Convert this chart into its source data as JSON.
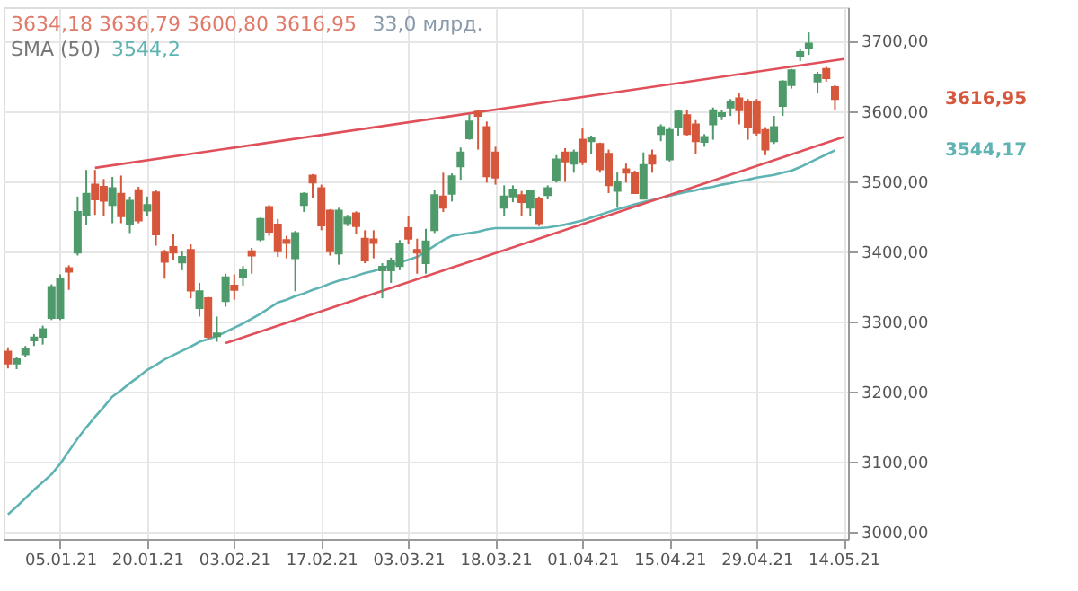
{
  "chart_data": {
    "type": "candlestick",
    "categories": [
      null,
      null,
      null,
      null,
      null,
      null,
      "05.01.21",
      null,
      null,
      null,
      null,
      null,
      null,
      null,
      null,
      null,
      "20.01.21",
      null,
      null,
      null,
      null,
      null,
      null,
      null,
      null,
      null,
      "03.02.21",
      null,
      null,
      null,
      null,
      null,
      null,
      null,
      null,
      null,
      "17.02.21",
      null,
      null,
      null,
      null,
      null,
      null,
      null,
      null,
      null,
      "03.03.21",
      null,
      null,
      null,
      null,
      null,
      null,
      null,
      null,
      null,
      "18.03.21",
      null,
      null,
      null,
      null,
      null,
      null,
      null,
      null,
      null,
      "01.04.21",
      null,
      null,
      null,
      null,
      null,
      null,
      null,
      null,
      null,
      "15.04.21",
      null,
      null,
      null,
      null,
      null,
      null,
      null,
      null,
      null,
      "29.04.21",
      null,
      null,
      null,
      null,
      null,
      null,
      null,
      null,
      null,
      "14.05.21"
    ],
    "ohlc": [
      [
        3257,
        3263,
        3233,
        3240
      ],
      [
        3240,
        3249,
        3232,
        3246
      ],
      [
        3253,
        3265,
        3249,
        3261
      ],
      [
        3273,
        3282,
        3265,
        3277
      ],
      [
        3278,
        3294,
        3267,
        3289
      ],
      [
        3305,
        3353,
        3302,
        3349
      ],
      [
        3305,
        3367,
        3302,
        3360
      ],
      [
        3376,
        3380,
        3345,
        3371
      ],
      [
        3398,
        3478,
        3394,
        3456
      ],
      [
        3452,
        3516,
        3438,
        3482
      ],
      [
        3495,
        3516,
        3452,
        3474
      ],
      [
        3492,
        3503,
        3450,
        3472
      ],
      [
        3466,
        3506,
        3440,
        3490
      ],
      [
        3482,
        3508,
        3440,
        3450
      ],
      [
        3438,
        3478,
        3426,
        3472
      ],
      [
        3487,
        3492,
        3440,
        3444
      ],
      [
        3458,
        3478,
        3450,
        3466
      ],
      [
        3484,
        3488,
        3408,
        3424
      ],
      [
        3398,
        3402,
        3361,
        3385
      ],
      [
        3406,
        3425,
        3387,
        3398
      ],
      [
        3384,
        3400,
        3373,
        3392
      ],
      [
        3402,
        3410,
        3333,
        3344
      ],
      [
        3319,
        3355,
        3307,
        3343
      ],
      [
        3333,
        3335,
        3273,
        3278
      ],
      [
        3279,
        3307,
        3271,
        3283
      ],
      [
        3329,
        3368,
        3321,
        3363
      ],
      [
        3351,
        3367,
        3331,
        3345
      ],
      [
        3363,
        3379,
        3351,
        3373
      ],
      [
        3400,
        3405,
        3368,
        3394
      ],
      [
        3417,
        3448,
        3414,
        3446
      ],
      [
        3463,
        3466,
        3422,
        3428
      ],
      [
        3438,
        3446,
        3392,
        3400
      ],
      [
        3416,
        3422,
        3390,
        3412
      ],
      [
        3390,
        3429,
        3343,
        3426
      ],
      [
        3466,
        3484,
        3456,
        3482
      ],
      [
        3508,
        3510,
        3476,
        3498
      ],
      [
        3490,
        3495,
        3430,
        3437
      ],
      [
        3458,
        3460,
        3394,
        3400
      ],
      [
        3397,
        3462,
        3381,
        3458
      ],
      [
        3440,
        3452,
        3436,
        3448
      ],
      [
        3454,
        3457,
        3424,
        3436
      ],
      [
        3418,
        3430,
        3383,
        3387
      ],
      [
        3417,
        3430,
        3390,
        3412
      ],
      [
        3373,
        3383,
        3333,
        3378
      ],
      [
        3373,
        3391,
        3355,
        3387
      ],
      [
        3379,
        3416,
        3373,
        3410
      ],
      [
        3433,
        3450,
        3410,
        3418
      ],
      [
        3402,
        3418,
        3368,
        3398
      ],
      [
        3383,
        3432,
        3368,
        3414
      ],
      [
        3430,
        3488,
        3426,
        3480
      ],
      [
        3478,
        3512,
        3456,
        3462
      ],
      [
        3482,
        3511,
        3471,
        3507
      ],
      [
        3521,
        3548,
        3502,
        3541
      ],
      [
        3561,
        3595,
        3559,
        3585
      ],
      [
        3599,
        3601,
        3545,
        3593
      ],
      [
        3577,
        3585,
        3498,
        3507
      ],
      [
        3541,
        3549,
        3495,
        3505
      ],
      [
        3462,
        3494,
        3450,
        3478
      ],
      [
        3478,
        3494,
        3470,
        3488
      ],
      [
        3480,
        3486,
        3450,
        3470
      ],
      [
        3462,
        3488,
        3450,
        3486
      ],
      [
        3475,
        3478,
        3436,
        3440
      ],
      [
        3480,
        3494,
        3474,
        3490
      ],
      [
        3502,
        3537,
        3498,
        3531
      ],
      [
        3541,
        3547,
        3499,
        3528
      ],
      [
        3525,
        3545,
        3512,
        3541
      ],
      [
        3559,
        3575,
        3523,
        3528
      ],
      [
        3557,
        3565,
        3539,
        3561
      ],
      [
        3553,
        3555,
        3512,
        3517
      ],
      [
        3539,
        3545,
        3483,
        3494
      ],
      [
        3486,
        3513,
        3462,
        3499
      ],
      [
        3517,
        3525,
        3498,
        3512
      ],
      [
        3512,
        3515,
        3482,
        3483
      ],
      [
        3475,
        3541,
        3474,
        3523
      ],
      [
        3536,
        3545,
        3512,
        3525
      ],
      [
        3567,
        3581,
        3557,
        3577
      ],
      [
        3531,
        3577,
        3528,
        3573
      ],
      [
        3577,
        3602,
        3565,
        3599
      ],
      [
        3594,
        3602,
        3565,
        3567
      ],
      [
        3581,
        3587,
        3539,
        3557
      ],
      [
        3556,
        3567,
        3549,
        3563
      ],
      [
        3581,
        3605,
        3559,
        3601
      ],
      [
        3593,
        3601,
        3587,
        3597
      ],
      [
        3605,
        3617,
        3593,
        3613
      ],
      [
        3618,
        3625,
        3581,
        3601
      ],
      [
        3613,
        3617,
        3559,
        3577
      ],
      [
        3613,
        3617,
        3565,
        3569
      ],
      [
        3573,
        3577,
        3537,
        3545
      ],
      [
        3557,
        3593,
        3553,
        3577
      ],
      [
        3607,
        3644,
        3593,
        3642
      ],
      [
        3637,
        3660,
        3632,
        3658
      ],
      [
        3679,
        3688,
        3671,
        3684
      ],
      [
        3690,
        3712,
        3680,
        3696
      ],
      [
        3642,
        3656,
        3625,
        3652
      ],
      [
        3660,
        3663,
        3642,
        3647
      ],
      [
        3634.18,
        3636.79,
        3600.8,
        3616.95
      ],
      null
    ],
    "colors": [
      "#d6573b",
      "#4e9a6a",
      "#4e9a6a",
      "#4e9a6a",
      "#4e9a6a",
      "#4e9a6a",
      "#4e9a6a",
      "#d6573b",
      "#4e9a6a",
      "#4e9a6a",
      "#d6573b",
      "#d6573b",
      "#4e9a6a",
      "#d6573b",
      "#4e9a6a",
      "#d6573b",
      "#4e9a6a",
      "#d6573b",
      "#d6573b",
      "#d6573b",
      "#4e9a6a",
      "#d6573b",
      "#4e9a6a",
      "#d6573b",
      "#4e9a6a",
      "#4e9a6a",
      "#d6573b",
      "#4e9a6a",
      "#d6573b",
      "#4e9a6a",
      "#d6573b",
      "#d6573b",
      "#d6573b",
      "#4e9a6a",
      "#4e9a6a",
      "#d6573b",
      "#d6573b",
      "#d6573b",
      "#4e9a6a",
      "#4e9a6a",
      "#d6573b",
      "#d6573b",
      "#d6573b",
      "#4e9a6a",
      "#4e9a6a",
      "#4e9a6a",
      "#d6573b",
      "#d6573b",
      "#4e9a6a",
      "#4e9a6a",
      "#d6573b",
      "#4e9a6a",
      "#4e9a6a",
      "#4e9a6a",
      "#d6573b",
      "#d6573b",
      "#d6573b",
      "#4e9a6a",
      "#4e9a6a",
      "#d6573b",
      "#4e9a6a",
      "#d6573b",
      "#4e9a6a",
      "#4e9a6a",
      "#d6573b",
      "#4e9a6a",
      "#d6573b",
      "#4e9a6a",
      "#d6573b",
      "#d6573b",
      "#4e9a6a",
      "#d6573b",
      "#d6573b",
      "#4e9a6a",
      "#d6573b",
      "#4e9a6a",
      "#4e9a6a",
      "#4e9a6a",
      "#d6573b",
      "#d6573b",
      "#4e9a6a",
      "#4e9a6a",
      "#4e9a6a",
      "#4e9a6a",
      "#d6573b",
      "#d6573b",
      "#d6573b",
      "#d6573b",
      "#4e9a6a",
      "#4e9a6a",
      "#4e9a6a",
      "#4e9a6a",
      "#4e9a6a",
      "#4e9a6a",
      "#d6573b",
      "#d6573b",
      null
    ],
    "series": [
      {
        "name": "SMA (50)",
        "type": "line",
        "color": "#5fb3b3",
        "values": [
          3025,
          3036,
          3048,
          3060,
          3071,
          3082,
          3097,
          3115,
          3133,
          3149,
          3164,
          3178,
          3193,
          3202,
          3212,
          3221,
          3231,
          3238,
          3246,
          3252,
          3258,
          3264,
          3271,
          3275,
          3279,
          3285,
          3291,
          3297,
          3304,
          3311,
          3319,
          3327,
          3331,
          3336,
          3340,
          3345,
          3349,
          3354,
          3358,
          3361,
          3365,
          3369,
          3372,
          3376,
          3380,
          3384,
          3388,
          3392,
          3400,
          3408,
          3416,
          3422,
          3424,
          3426,
          3428,
          3431,
          3433,
          3433,
          3433,
          3433,
          3433,
          3433,
          3434,
          3436,
          3438,
          3441,
          3444,
          3448,
          3452,
          3456,
          3460,
          3463,
          3467,
          3470,
          3473,
          3476,
          3479,
          3482,
          3485,
          3487,
          3490,
          3492,
          3495,
          3497,
          3500,
          3502,
          3505,
          3507,
          3509,
          3512,
          3515,
          3520,
          3526,
          3532,
          3538,
          3544,
          null
        ]
      },
      {
        "type": "line",
        "color": "#e0505a",
        "values": [
          null,
          null,
          null,
          null,
          null,
          null,
          null,
          null,
          null,
          null,
          3519,
          null,
          null,
          null,
          null,
          null,
          null,
          null,
          null,
          null,
          null,
          null,
          null,
          null,
          null,
          null,
          null,
          null,
          null,
          null,
          null,
          null,
          null,
          null,
          null,
          null,
          null,
          null,
          null,
          null,
          null,
          null,
          null,
          null,
          null,
          null,
          null,
          null,
          null,
          null,
          null,
          null,
          null,
          null,
          null,
          null,
          null,
          null,
          null,
          null,
          null,
          null,
          null,
          null,
          null,
          null,
          null,
          null,
          null,
          null,
          null,
          null,
          null,
          null,
          null,
          null,
          null,
          null,
          null,
          null,
          null,
          null,
          null,
          null,
          null,
          null,
          null,
          null,
          null,
          null,
          null,
          null,
          null,
          null,
          null,
          null,
          3674
        ]
      },
      {
        "type": "line",
        "color": "#e0505a",
        "values": [
          null,
          null,
          null,
          null,
          null,
          null,
          null,
          null,
          null,
          null,
          null,
          null,
          null,
          null,
          null,
          null,
          null,
          null,
          null,
          null,
          null,
          null,
          null,
          null,
          null,
          3269,
          null,
          null,
          null,
          null,
          null,
          null,
          null,
          null,
          null,
          null,
          null,
          null,
          null,
          null,
          null,
          null,
          null,
          null,
          null,
          null,
          null,
          null,
          null,
          null,
          null,
          null,
          null,
          null,
          null,
          null,
          null,
          null,
          null,
          null,
          null,
          null,
          null,
          null,
          null,
          null,
          null,
          null,
          null,
          null,
          null,
          null,
          null,
          null,
          null,
          null,
          null,
          null,
          null,
          null,
          null,
          null,
          null,
          null,
          null,
          null,
          null,
          null,
          null,
          null,
          null,
          null,
          null,
          null,
          null,
          null,
          3563
        ]
      }
    ],
    "ylim": [
      2990,
      3748
    ],
    "yticks": [
      {
        "value": 3000,
        "label": "3000,00"
      },
      {
        "value": 3100,
        "label": "3100,00"
      },
      {
        "value": 3200,
        "label": "3200,00"
      },
      {
        "value": 3300,
        "label": "3300,00"
      },
      {
        "value": 3400,
        "label": "3400,00"
      },
      {
        "value": 3500,
        "label": "3500,00"
      },
      {
        "value": 3600,
        "label": "3600,00"
      },
      {
        "value": 3700,
        "label": "3700,00"
      }
    ],
    "grid": true,
    "annotations": [
      "3634,18 3636,79 3600,80 3616,95",
      "33,0 млрд.",
      "3544,2",
      "3616,95",
      "3544,17"
    ]
  }
}
